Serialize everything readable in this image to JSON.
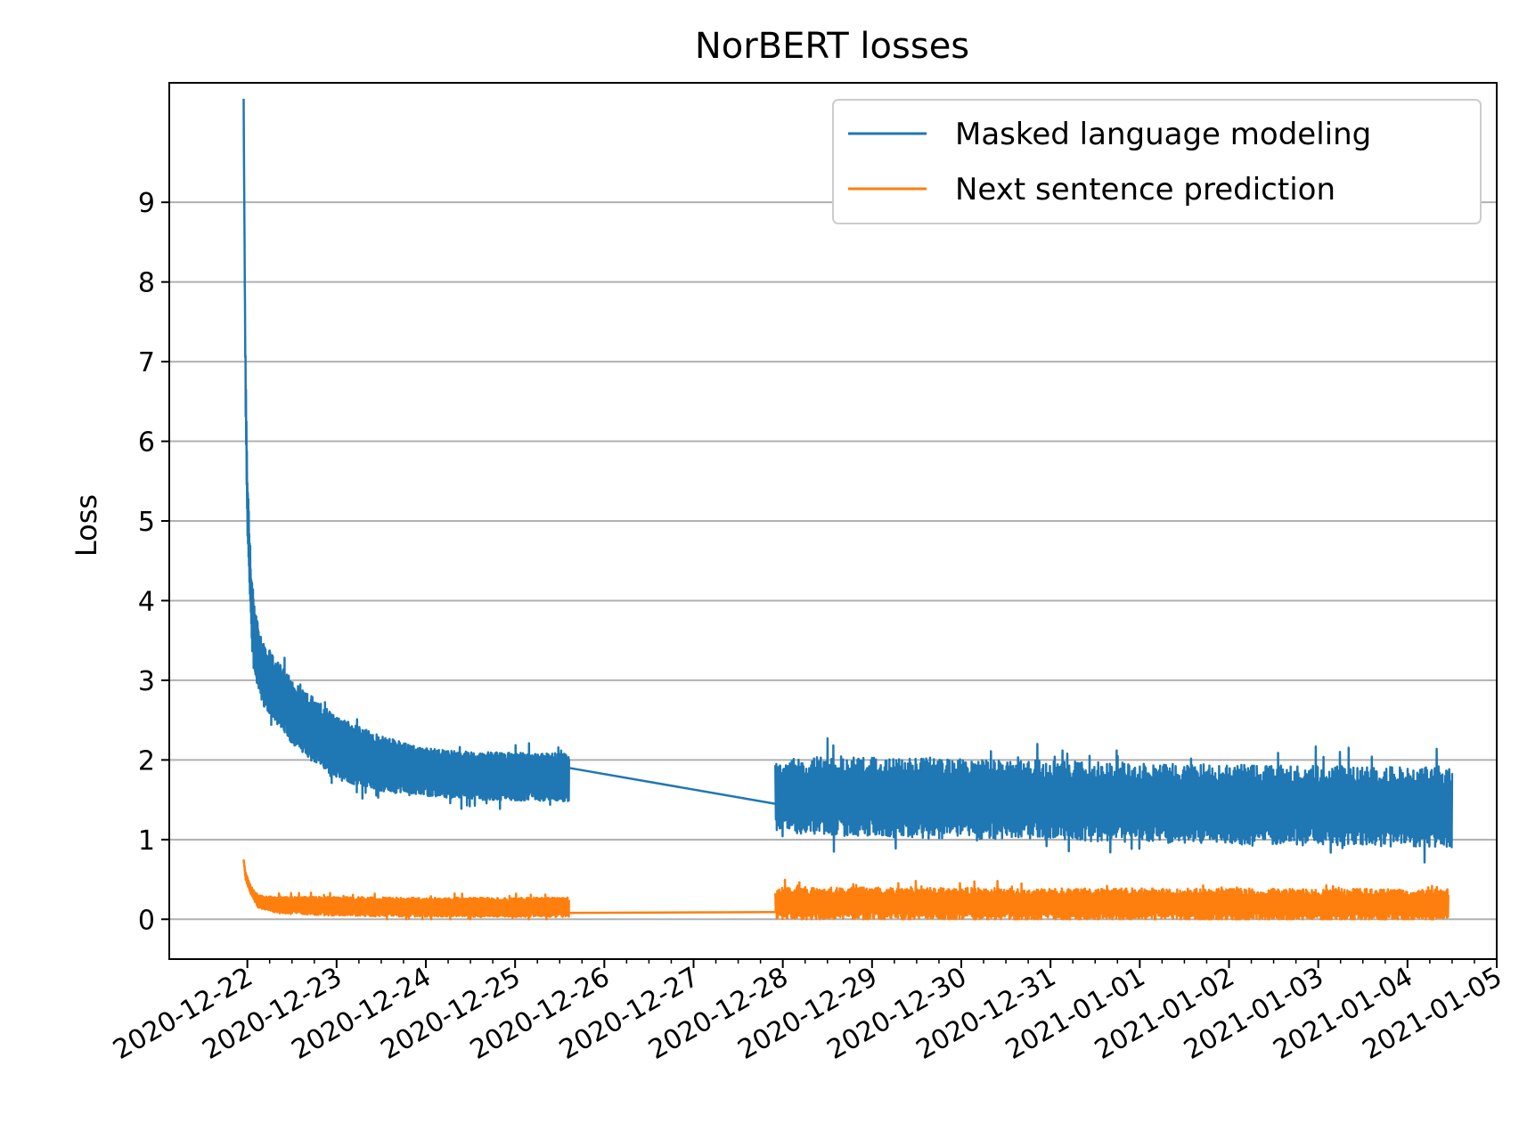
{
  "chart_data": {
    "type": "line",
    "title": "NorBERT losses",
    "xlabel": "",
    "ylabel": "Loss",
    "ylim": [
      -0.5,
      10.5
    ],
    "y_ticks": [
      0,
      1,
      2,
      3,
      4,
      5,
      6,
      7,
      8,
      9
    ],
    "x_ticks": [
      "2020-12-22",
      "2020-12-23",
      "2020-12-24",
      "2020-12-25",
      "2020-12-26",
      "2020-12-27",
      "2020-12-28",
      "2020-12-29",
      "2020-12-30",
      "2020-12-31",
      "2021-01-01",
      "2021-01-02",
      "2021-01-03",
      "2021-01-04",
      "2021-01-05"
    ],
    "xlim": [
      "2020-12-21T03:00",
      "2021-01-05T00:00"
    ],
    "grid": "horizontal",
    "legend_position": "top-right",
    "series": [
      {
        "name": "Masked language modeling",
        "color": "#1f77b4",
        "segments": [
          {
            "x": [
              "2020-12-21T23:00",
              "2020-12-21T23:10",
              "2020-12-21T23:30",
              "2020-12-22T00:00",
              "2020-12-22T01:00",
              "2020-12-22T02:00",
              "2020-12-22T04:00",
              "2020-12-22T08:00",
              "2020-12-22T12:00",
              "2020-12-23T00:00",
              "2020-12-23T12:00",
              "2020-12-24T00:00",
              "2020-12-24T12:00",
              "2020-12-25T14:30"
            ],
            "y": [
              10.3,
              9.0,
              6.8,
              5.2,
              4.0,
              3.5,
              3.1,
              2.85,
              2.6,
              2.15,
              1.95,
              1.85,
              1.8,
              1.78
            ],
            "band": [
              0.0,
              0.0,
              0.3,
              0.4,
              0.4,
              0.4,
              0.4,
              0.4,
              0.4,
              0.4,
              0.35,
              0.3,
              0.3,
              0.3
            ]
          },
          {
            "x": [
              "2020-12-25T14:30",
              "2020-12-27T22:00"
            ],
            "y": [
              1.9,
              1.45
            ],
            "band": [
              0,
              0
            ]
          },
          {
            "x": [
              "2020-12-27T22:00",
              "2020-12-28T12:00",
              "2020-12-29T12:00",
              "2020-12-30T12:00",
              "2020-12-31T12:00",
              "2021-01-01T12:00",
              "2021-01-02T12:00",
              "2021-01-03T12:00",
              "2021-01-04T12:00",
              "2021-01-04T11:00"
            ],
            "y": [
              1.55,
              1.55,
              1.52,
              1.5,
              1.48,
              1.45,
              1.43,
              1.42,
              1.4,
              1.4
            ],
            "band": [
              0.45,
              0.5,
              0.5,
              0.5,
              0.5,
              0.5,
              0.5,
              0.5,
              0.5,
              0.5
            ]
          }
        ]
      },
      {
        "name": "Next sentence prediction",
        "color": "#ff7f0e",
        "segments": [
          {
            "x": [
              "2020-12-21T23:00",
              "2020-12-21T23:30",
              "2020-12-22T01:00",
              "2020-12-22T03:00",
              "2020-12-22T08:00",
              "2020-12-23T00:00",
              "2020-12-24T00:00",
              "2020-12-25T14:30"
            ],
            "y": [
              0.75,
              0.55,
              0.35,
              0.22,
              0.18,
              0.16,
              0.15,
              0.15
            ],
            "band": [
              0.0,
              0.05,
              0.05,
              0.08,
              0.1,
              0.12,
              0.12,
              0.12
            ]
          },
          {
            "x": [
              "2020-12-25T14:30",
              "2020-12-27T22:00"
            ],
            "y": [
              0.08,
              0.09
            ],
            "band": [
              0,
              0
            ]
          },
          {
            "x": [
              "2020-12-27T22:00",
              "2021-01-04T11:00"
            ],
            "y": [
              0.2,
              0.18
            ],
            "band": [
              0.2,
              0.2
            ]
          }
        ]
      }
    ]
  }
}
